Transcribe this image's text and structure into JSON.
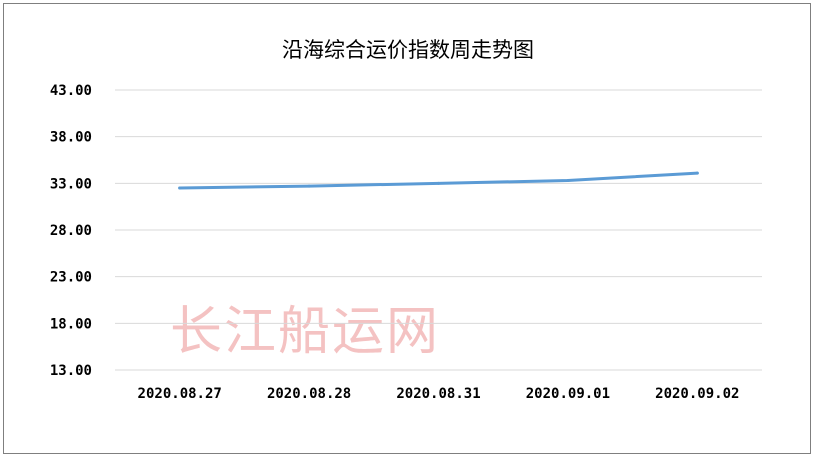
{
  "chart_data": {
    "type": "line",
    "title": "沿海综合运价指数周走势图",
    "xlabel": "",
    "ylabel": "",
    "categories": [
      "2020.08.27",
      "2020.08.28",
      "2020.08.31",
      "2020.09.01",
      "2020.09.02"
    ],
    "series": [
      {
        "values": [
          32.5,
          32.7,
          33.0,
          33.3,
          34.1
        ],
        "color": "#5b9bd5"
      }
    ],
    "ylim": [
      13,
      43
    ],
    "y_ticks": [
      "43.00",
      "38.00",
      "33.00",
      "28.00",
      "23.00",
      "18.00",
      "13.00"
    ],
    "grid": true,
    "legend": "none"
  },
  "watermark": "长江船运网",
  "colors": {
    "line": "#5b9bd5",
    "grid": "#d9d9d9",
    "border": "#7f7f7f",
    "watermark": "#f4c2c2"
  }
}
